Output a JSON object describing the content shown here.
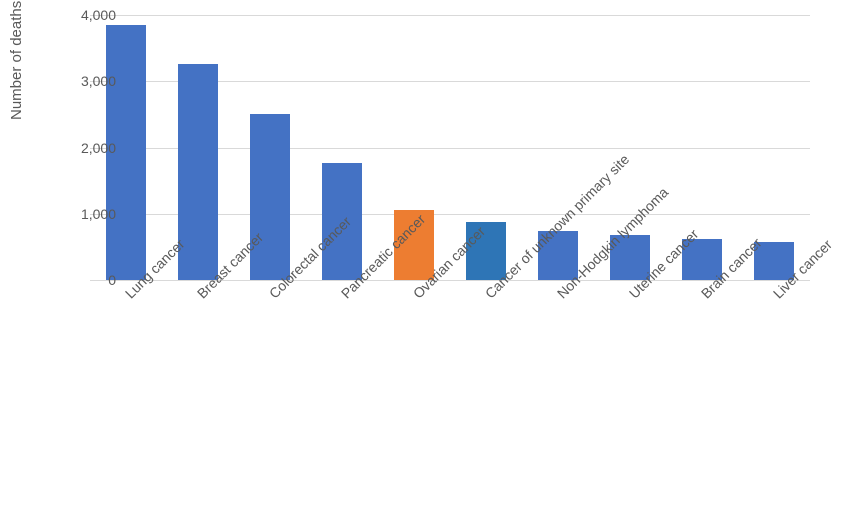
{
  "chart": {
    "type": "bar",
    "ylabel": "Number of deaths",
    "label_fontsize": 15,
    "tick_fontsize": 14,
    "ylim": [
      0,
      4000
    ],
    "ytick_step": 1000,
    "yticks": [
      0,
      1000,
      2000,
      3000,
      4000
    ],
    "ytick_labels": [
      "0",
      "1,000",
      "2,000",
      "3,000",
      "4,000"
    ],
    "categories": [
      "Lung cancer",
      "Breast cancer",
      "Colorectal cancer",
      "Pancreatic cancer",
      "Ovarian cancer",
      "Cancer of unknown primary site",
      "Non-Hodgkin lymphoma",
      "Uterine cancer",
      "Brain cancer",
      "Liver cancer"
    ],
    "values": [
      3850,
      3260,
      2500,
      1770,
      1060,
      870,
      740,
      680,
      620,
      580
    ],
    "bar_colors": [
      "#4472c4",
      "#4472c4",
      "#4472c4",
      "#4472c4",
      "#ed7d31",
      "#2e75b6",
      "#4472c4",
      "#4472c4",
      "#4472c4",
      "#4472c4"
    ],
    "background_color": "#ffffff",
    "grid_color": "#d9d9d9",
    "text_color": "#595959",
    "bar_width": 0.55,
    "x_label_rotation": -45
  }
}
